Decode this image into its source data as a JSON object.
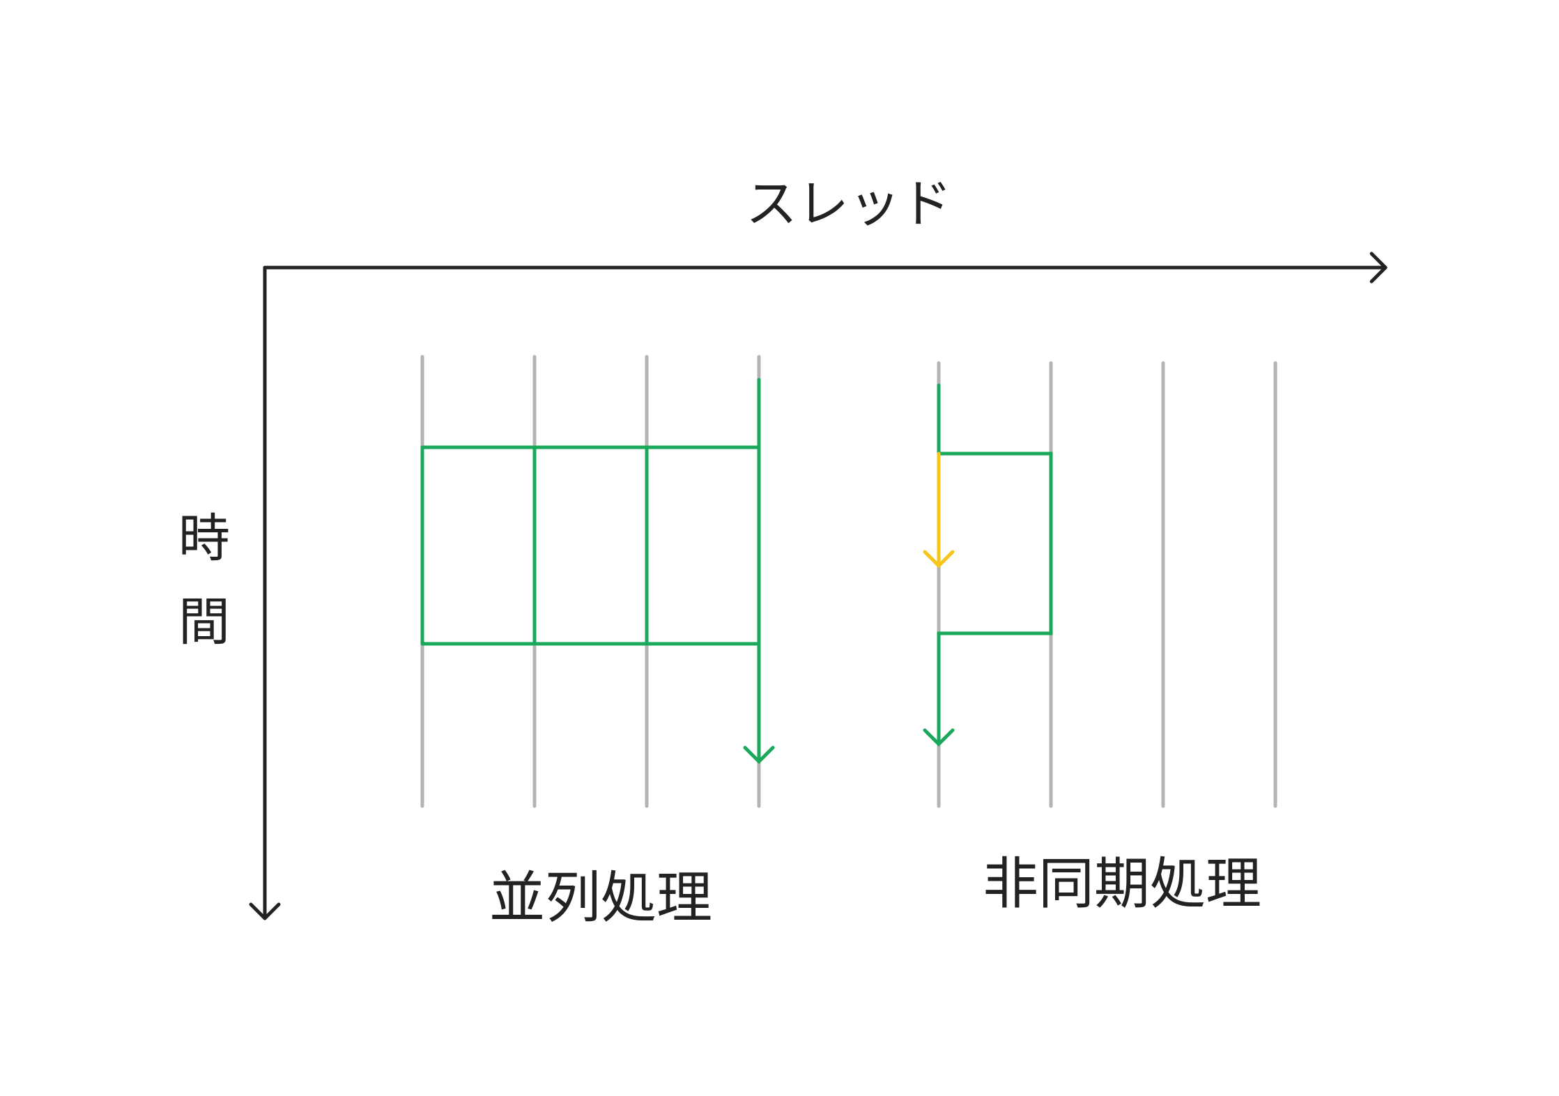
{
  "axes": {
    "thread_label": "スレッド",
    "time_label_char1": "時",
    "time_label_char2": "間"
  },
  "sections": {
    "parallel": {
      "label": "並列処理",
      "thread_count": 4
    },
    "async": {
      "label": "非同期処理",
      "thread_count": 4
    }
  },
  "colors": {
    "axis": "#222222",
    "thread_line": "#b4b4b4",
    "flow": "#1aa85a",
    "wait": "#f5c518"
  }
}
